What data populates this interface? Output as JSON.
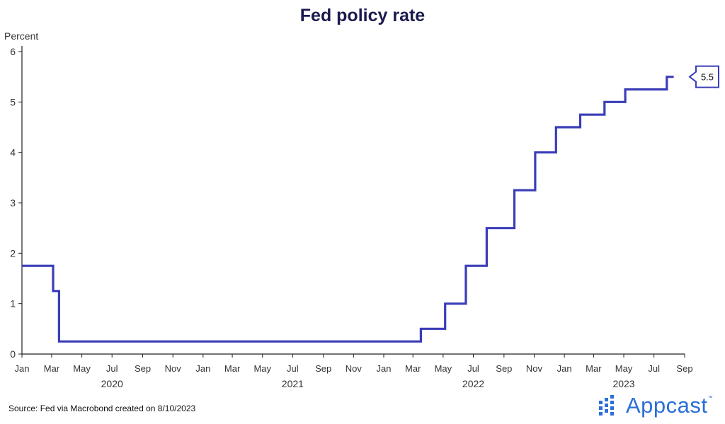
{
  "chart_data": {
    "type": "line",
    "step": true,
    "title": "Fed policy rate",
    "ylabel": "Percent",
    "ylim": [
      0,
      6
    ],
    "yticks": [
      0,
      1,
      2,
      3,
      4,
      5,
      6
    ],
    "xlim": [
      "2020-01-01",
      "2023-09-01"
    ],
    "month_ticks": [
      {
        "date": "2020-01-01",
        "label": "Jan"
      },
      {
        "date": "2020-03-01",
        "label": "Mar"
      },
      {
        "date": "2020-05-01",
        "label": "May"
      },
      {
        "date": "2020-07-01",
        "label": "Jul"
      },
      {
        "date": "2020-09-01",
        "label": "Sep"
      },
      {
        "date": "2020-11-01",
        "label": "Nov"
      },
      {
        "date": "2021-01-01",
        "label": "Jan"
      },
      {
        "date": "2021-03-01",
        "label": "Mar"
      },
      {
        "date": "2021-05-01",
        "label": "May"
      },
      {
        "date": "2021-07-01",
        "label": "Jul"
      },
      {
        "date": "2021-09-01",
        "label": "Sep"
      },
      {
        "date": "2021-11-01",
        "label": "Nov"
      },
      {
        "date": "2022-01-01",
        "label": "Jan"
      },
      {
        "date": "2022-03-01",
        "label": "Mar"
      },
      {
        "date": "2022-05-01",
        "label": "May"
      },
      {
        "date": "2022-07-01",
        "label": "Jul"
      },
      {
        "date": "2022-09-01",
        "label": "Sep"
      },
      {
        "date": "2022-11-01",
        "label": "Nov"
      },
      {
        "date": "2023-01-01",
        "label": "Jan"
      },
      {
        "date": "2023-03-01",
        "label": "Mar"
      },
      {
        "date": "2023-05-01",
        "label": "May"
      },
      {
        "date": "2023-07-01",
        "label": "Jul"
      },
      {
        "date": "2023-09-01",
        "label": "Sep"
      }
    ],
    "year_labels": [
      {
        "date": "2020-07-01",
        "label": "2020"
      },
      {
        "date": "2021-07-01",
        "label": "2021"
      },
      {
        "date": "2022-07-01",
        "label": "2022"
      },
      {
        "date": "2023-05-01",
        "label": "2023"
      }
    ],
    "series": [
      {
        "color": "#3a3db8",
        "points": [
          {
            "date": "2020-01-01",
            "value": 1.75
          },
          {
            "date": "2020-03-04",
            "value": 1.25
          },
          {
            "date": "2020-03-16",
            "value": 0.25
          },
          {
            "date": "2022-03-17",
            "value": 0.5
          },
          {
            "date": "2022-05-05",
            "value": 1.0
          },
          {
            "date": "2022-06-16",
            "value": 1.75
          },
          {
            "date": "2022-07-28",
            "value": 2.5
          },
          {
            "date": "2022-09-22",
            "value": 3.25
          },
          {
            "date": "2022-11-03",
            "value": 4.0
          },
          {
            "date": "2022-12-15",
            "value": 4.5
          },
          {
            "date": "2023-02-02",
            "value": 4.75
          },
          {
            "date": "2023-03-23",
            "value": 5.0
          },
          {
            "date": "2023-05-04",
            "value": 5.25
          },
          {
            "date": "2023-07-27",
            "value": 5.5
          },
          {
            "date": "2023-08-10",
            "value": 5.5
          }
        ]
      }
    ],
    "end_label": "5.5",
    "grid": false
  },
  "footer": {
    "source": "Source: Fed via Macrobond created on 8/10/2023"
  },
  "logo": {
    "text": "Appcast",
    "tm": "™",
    "color": "#2a6fd8"
  }
}
